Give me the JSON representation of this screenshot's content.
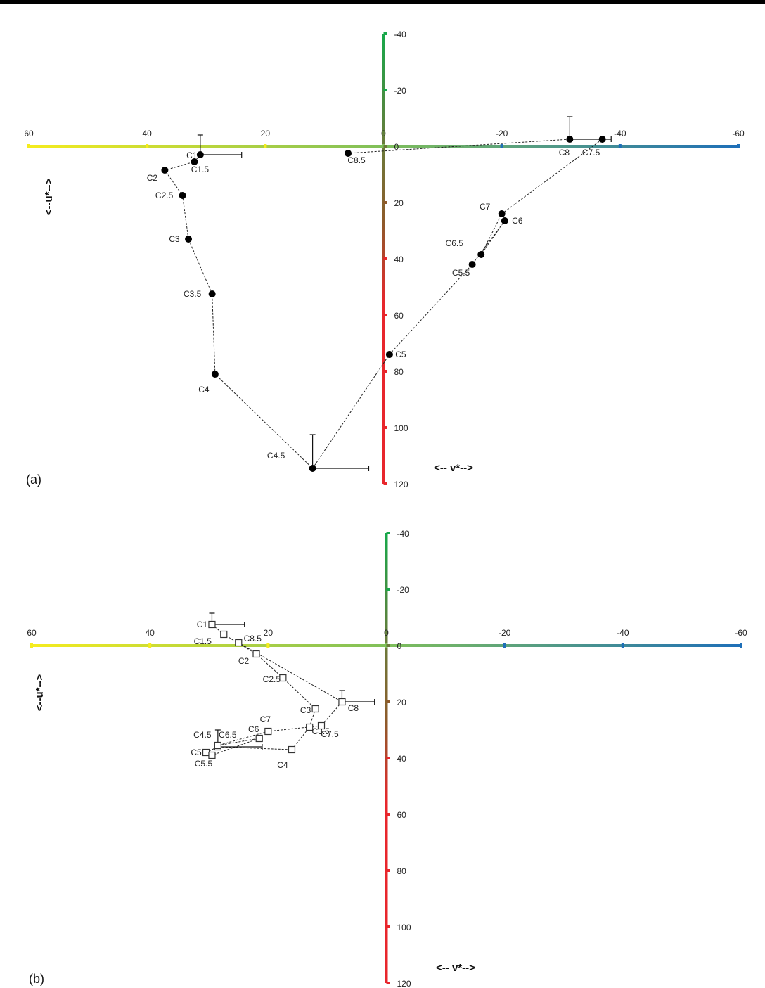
{
  "chart_data": [
    {
      "type": "scatter",
      "panel_label": "(a)",
      "xlabel": "<-- v*-->",
      "ylabel": "<--u*-->",
      "x_ticks": [
        60,
        40,
        20,
        0,
        -20,
        -40,
        -60
      ],
      "y_ticks": [
        -40,
        -20,
        0,
        20,
        40,
        60,
        80,
        100,
        120
      ],
      "xlim": [
        60,
        -60
      ],
      "ylim": [
        -40,
        120
      ],
      "colors": {
        "x_pos": "#f5ec1e",
        "x_zero": "#7fbf5a",
        "x_neg": "#1e6fb8",
        "y_top": "#17a84a",
        "y_zero": "#6b7a3a",
        "y_mid": "#8e5a2a",
        "y_bottom": "#e8262c"
      },
      "marker": "filled-circle",
      "connected": "dashed",
      "points": [
        {
          "label": "C1",
          "x": 31,
          "y": 3
        },
        {
          "label": "C1.5",
          "x": 32,
          "y": 5.5
        },
        {
          "label": "C2",
          "x": 37,
          "y": 8.5
        },
        {
          "label": "C2.5",
          "x": 34,
          "y": 17.5
        },
        {
          "label": "C3",
          "x": 33,
          "y": 33
        },
        {
          "label": "C3.5",
          "x": 29,
          "y": 52.5
        },
        {
          "label": "C4",
          "x": 28.5,
          "y": 81
        },
        {
          "label": "C4.5",
          "x": 12,
          "y": 114.5
        },
        {
          "label": "C5",
          "x": -1,
          "y": 74
        },
        {
          "label": "C5.5",
          "x": -15,
          "y": 42
        },
        {
          "label": "C6",
          "x": -20.5,
          "y": 26.5
        },
        {
          "label": "C6.5",
          "x": -16.5,
          "y": 38.5
        },
        {
          "label": "C7",
          "x": -20,
          "y": 24
        },
        {
          "label": "C7.5",
          "x": -37,
          "y": -2.5
        },
        {
          "label": "C8",
          "x": -31.5,
          "y": -2.5
        },
        {
          "label": "C8.5",
          "x": 6,
          "y": 2.5
        }
      ],
      "error_bars": [
        {
          "point": "C1",
          "x_err": 7,
          "y_err": 7
        },
        {
          "point": "C4.5",
          "x_err": 9.5,
          "y_err": 12
        },
        {
          "point": "C8",
          "x_err": 7,
          "y_err": 8
        }
      ]
    },
    {
      "type": "scatter",
      "panel_label": "(b)",
      "xlabel": "<-- v*-->",
      "ylabel": "<--u*-->",
      "x_ticks": [
        60,
        40,
        20,
        0,
        -20,
        -40,
        -60
      ],
      "y_ticks": [
        -40,
        -20,
        0,
        20,
        40,
        60,
        80,
        100,
        120
      ],
      "xlim": [
        60,
        -60
      ],
      "ylim": [
        -40,
        120
      ],
      "marker": "open-square",
      "connected": "dashed",
      "points": [
        {
          "label": "C1",
          "x": 29.5,
          "y": -7.5
        },
        {
          "label": "C1.5",
          "x": 27.5,
          "y": -4
        },
        {
          "label": "C2",
          "x": 22,
          "y": 3
        },
        {
          "label": "C2.5",
          "x": 17.5,
          "y": 11.5
        },
        {
          "label": "C3",
          "x": 12,
          "y": 22.5
        },
        {
          "label": "C3.5",
          "x": 13,
          "y": 29
        },
        {
          "label": "C4",
          "x": 16,
          "y": 37
        },
        {
          "label": "C4.5",
          "x": 28.5,
          "y": 36
        },
        {
          "label": "C5",
          "x": 30.5,
          "y": 38
        },
        {
          "label": "C5.5",
          "x": 29.5,
          "y": 39
        },
        {
          "label": "C6",
          "x": 21.5,
          "y": 33
        },
        {
          "label": "C6.5",
          "x": 28.5,
          "y": 35.5
        },
        {
          "label": "C7",
          "x": 20,
          "y": 30.5
        },
        {
          "label": "C7.5",
          "x": 11,
          "y": 28.5
        },
        {
          "label": "C8",
          "x": 7.5,
          "y": 20
        },
        {
          "label": "C8.5",
          "x": 25,
          "y": -1
        }
      ],
      "error_bars": [
        {
          "point": "C1",
          "x_err": 5.5,
          "y_err": 4
        },
        {
          "point": "C4.5",
          "x_err": 7.5,
          "y_err": 6
        },
        {
          "point": "C8",
          "x_err": 5.5,
          "y_err": 4
        }
      ]
    }
  ]
}
